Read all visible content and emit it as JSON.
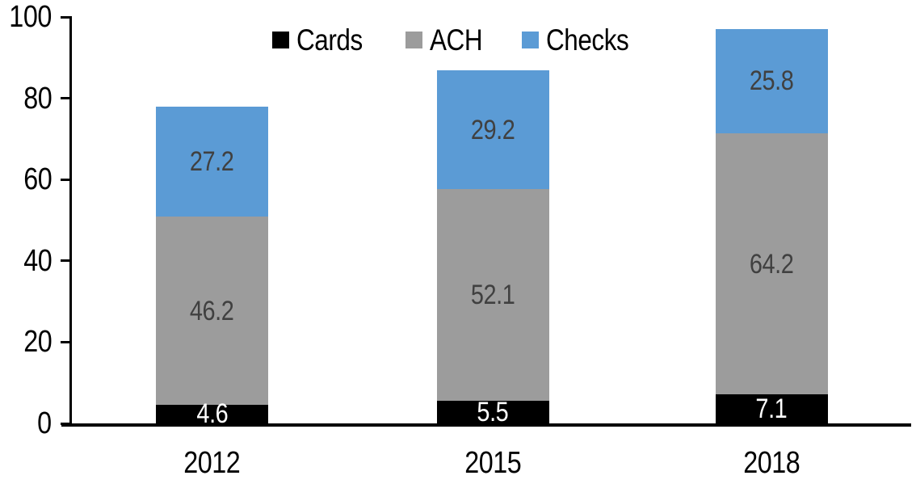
{
  "chart_data": {
    "type": "bar",
    "stacked": true,
    "title": "",
    "categories": [
      "2012",
      "2015",
      "2018"
    ],
    "series": [
      {
        "name": "Cards",
        "values": [
          4.6,
          5.5,
          7.1
        ],
        "color": "#000000",
        "label_color": "#ffffff"
      },
      {
        "name": "ACH",
        "values": [
          46.2,
          52.1,
          64.2
        ],
        "color": "#9c9c9c",
        "label_color": "#404040"
      },
      {
        "name": "Checks",
        "values": [
          27.2,
          29.2,
          25.8
        ],
        "color": "#5b9bd5",
        "label_color": "#404040"
      }
    ],
    "ylim": [
      0,
      100
    ],
    "yticks": [
      0,
      20,
      40,
      60,
      80,
      100
    ],
    "grid": false,
    "legend_position": "top",
    "axis_color": "#000000",
    "value_decimals": 1
  }
}
